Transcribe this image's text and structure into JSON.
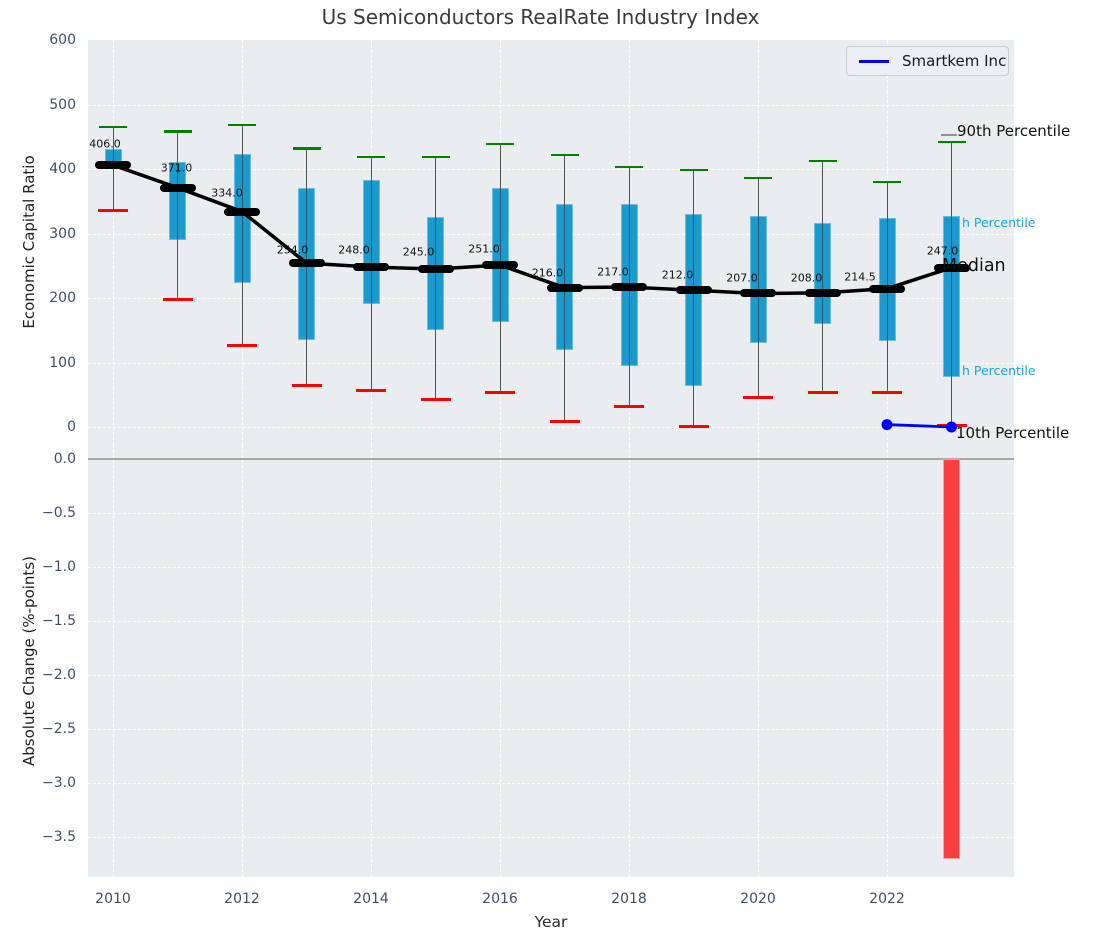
{
  "title": "Us Semiconductors RealRate Industry Index",
  "legend": {
    "label": "Smartkem Inc",
    "line_color": "#0000ff"
  },
  "annotations": {
    "p90": "90th Percentile",
    "p75": "h Percentile",
    "median": "Median",
    "p25": "h Percentile",
    "p10": "10th Percentile"
  },
  "axes": {
    "top": {
      "label": "Economic Capital Ratio",
      "tick_values": [
        0,
        100,
        200,
        300,
        400,
        500,
        600
      ],
      "tick_labels": [
        "0",
        "100",
        "200",
        "300",
        "400",
        "500",
        "600"
      ],
      "grid_values": [
        0,
        100,
        200,
        300,
        400,
        500
      ]
    },
    "bottom": {
      "label": "Absolute Change (%-points)",
      "tick_values": [
        0,
        -0.5,
        -1.0,
        -1.5,
        -2.0,
        -2.5,
        -3.0,
        -3.5
      ],
      "tick_labels": [
        "0.0",
        "−0.5",
        "−1.0",
        "−1.5",
        "−2.0",
        "−2.5",
        "−3.0",
        "−3.5"
      ],
      "grid_values": [
        -0.5,
        -1.0,
        -1.5,
        -2.0,
        -2.5,
        -3.0,
        -3.5
      ]
    },
    "x": {
      "label": "Year",
      "tick_values": [
        2010,
        2012,
        2014,
        2016,
        2018,
        2020,
        2022
      ],
      "tick_labels": [
        "2010",
        "2012",
        "2014",
        "2016",
        "2018",
        "2020",
        "2022"
      ]
    }
  },
  "colors": {
    "box": "#1b9ace",
    "p90_cap": "#008000",
    "p10_cap": "#ff0000",
    "median": "#000000",
    "trend_line": "#000000",
    "smartkem": "#0000ff",
    "change_bar": "#fa3d41",
    "annotation_cyan": "#18a4da",
    "panel_bg": "#e9edf0",
    "tick_text": "#3e4f6d",
    "title_text": "#3a3a3a"
  },
  "chart_data": [
    {
      "type": "boxplot",
      "title": "Us Semiconductors RealRate Industry Index",
      "ylabel": "Economic Capital Ratio",
      "xlabel": "Year",
      "ylim": [
        -28,
        600
      ],
      "grid": true,
      "legend_position": "upper right",
      "boxes": [
        {
          "year": 2010,
          "p10": 335,
          "q1": 400,
          "median": 406.0,
          "q3": 431,
          "p90": 465,
          "label": "406.0"
        },
        {
          "year": 2011,
          "p10": 198,
          "q1": 290,
          "median": 371.0,
          "q3": 411,
          "p90": 458,
          "label": "371.0"
        },
        {
          "year": 2012,
          "p10": 126,
          "q1": 223,
          "median": 334.0,
          "q3": 423,
          "p90": 468,
          "label": "334.0"
        },
        {
          "year": 2013,
          "p10": 65,
          "q1": 135,
          "median": 254.0,
          "q3": 370,
          "p90": 432,
          "label": "254.0"
        },
        {
          "year": 2014,
          "p10": 56,
          "q1": 190,
          "median": 248.0,
          "q3": 383,
          "p90": 419,
          "label": "248.0"
        },
        {
          "year": 2015,
          "p10": 42,
          "q1": 150,
          "median": 245.0,
          "q3": 326,
          "p90": 419,
          "label": "245.0"
        },
        {
          "year": 2016,
          "p10": 53,
          "q1": 163,
          "median": 251.0,
          "q3": 370,
          "p90": 439,
          "label": "251.0"
        },
        {
          "year": 2017,
          "p10": 8,
          "q1": 119,
          "median": 216.0,
          "q3": 346,
          "p90": 422,
          "label": "216.0"
        },
        {
          "year": 2018,
          "p10": 32,
          "q1": 94,
          "median": 217.0,
          "q3": 346,
          "p90": 403,
          "label": "217.0"
        },
        {
          "year": 2019,
          "p10": 1,
          "q1": 63,
          "median": 212.0,
          "q3": 331,
          "p90": 398,
          "label": "212.0"
        },
        {
          "year": 2020,
          "p10": 45,
          "q1": 130,
          "median": 207.0,
          "q3": 327,
          "p90": 386,
          "label": "207.0"
        },
        {
          "year": 2021,
          "p10": 53,
          "q1": 160,
          "median": 208.0,
          "q3": 317,
          "p90": 412,
          "label": "208.0"
        },
        {
          "year": 2022,
          "p10": 53,
          "q1": 134,
          "median": 214.5,
          "q3": 324,
          "p90": 380,
          "label": "214.5"
        },
        {
          "year": 2023,
          "p10": 3,
          "q1": 77,
          "median": 247.0,
          "q3": 327,
          "p90": 442,
          "label": "247.0"
        }
      ],
      "series": [
        {
          "name": "Smartkem Inc",
          "x": [
            2022,
            2023
          ],
          "y": [
            3.7,
            0.0
          ],
          "color": "#0000ff"
        }
      ]
    },
    {
      "type": "bar",
      "ylabel": "Absolute Change (%-points)",
      "xlabel": "Year",
      "ylim": [
        0.13,
        -3.87
      ],
      "categories": [
        2023
      ],
      "values": [
        -3.7
      ],
      "bar_color": "#fa3d41"
    }
  ]
}
